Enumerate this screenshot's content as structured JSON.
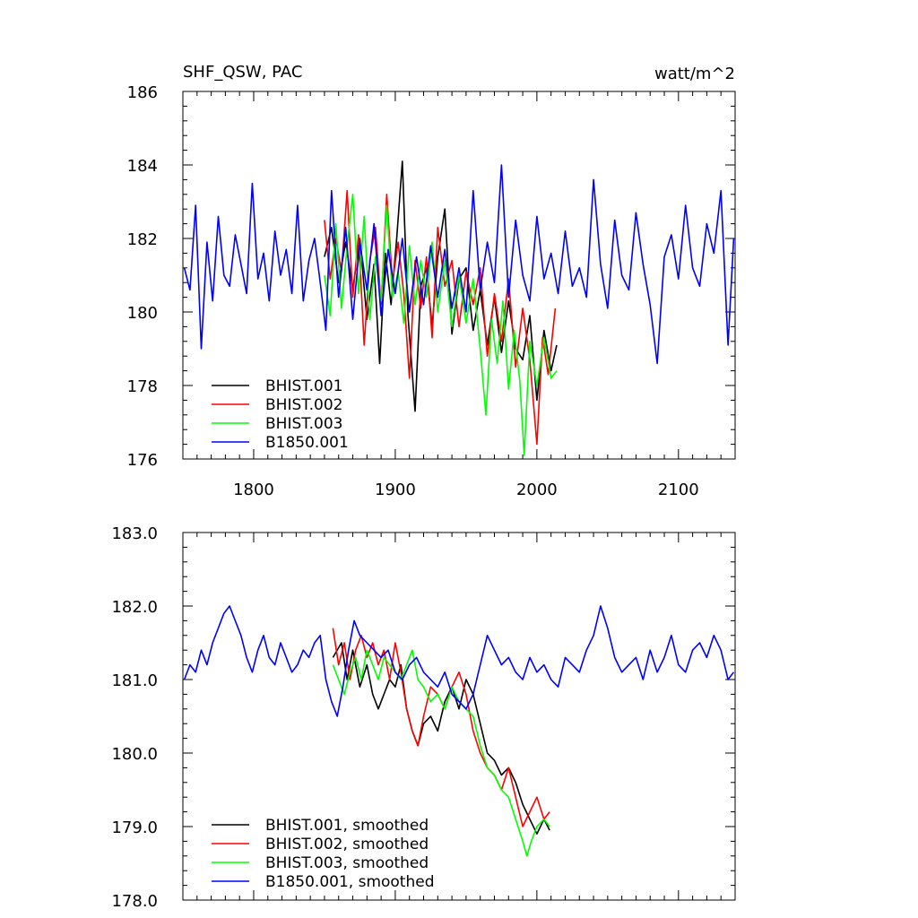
{
  "chart_data": [
    {
      "type": "line",
      "title": "SHF_QSW, PAC",
      "units": "watt/m^2",
      "xlim": [
        1750,
        2140
      ],
      "ylim": [
        176,
        186
      ],
      "x_ticks": [
        1800,
        1900,
        2000,
        2100
      ],
      "x_tick_labels": [
        "1800",
        "1900",
        "2000",
        "2100"
      ],
      "y_ticks": [
        176,
        178,
        180,
        182,
        184,
        186
      ],
      "y_tick_labels": [
        "176",
        "178",
        "180",
        "182",
        "184",
        "186"
      ],
      "legend_position": "bottom-left",
      "series": [
        {
          "name": "BHIST.001",
          "color": "#000000",
          "x": [
            1850,
            1855,
            1860,
            1865,
            1870,
            1875,
            1880,
            1885,
            1889,
            1893,
            1897,
            1901,
            1905,
            1909,
            1914,
            1918,
            1922,
            1926,
            1930,
            1935,
            1940,
            1945,
            1950,
            1955,
            1960,
            1965,
            1970,
            1975,
            1980,
            1985,
            1990,
            1995,
            2000,
            2005,
            2010,
            2014
          ],
          "values": [
            181.5,
            182.3,
            180.8,
            181.9,
            180.6,
            182.0,
            179.8,
            181.3,
            178.6,
            181.6,
            180.2,
            182.0,
            184.1,
            179.9,
            177.3,
            180.7,
            181.2,
            179.6,
            181.5,
            182.8,
            179.4,
            180.9,
            181.2,
            179.5,
            180.6,
            179.1,
            180.4,
            178.9,
            180.3,
            179.0,
            178.7,
            179.9,
            177.6,
            179.5,
            178.4,
            179.1
          ]
        },
        {
          "name": "BHIST.002",
          "color": "#ff0000",
          "x": [
            1850,
            1854,
            1858,
            1862,
            1866,
            1870,
            1874,
            1878,
            1882,
            1886,
            1890,
            1894,
            1898,
            1902,
            1906,
            1910,
            1914,
            1918,
            1922,
            1926,
            1930,
            1935,
            1940,
            1945,
            1950,
            1955,
            1960,
            1965,
            1970,
            1975,
            1980,
            1985,
            1990,
            1995,
            2000,
            2004,
            2008,
            2013
          ],
          "values": [
            182.5,
            180.9,
            182.0,
            181.1,
            183.3,
            180.4,
            182.1,
            179.1,
            181.4,
            182.3,
            180.2,
            183.2,
            180.8,
            181.9,
            180.5,
            178.2,
            181.4,
            180.1,
            181.5,
            179.3,
            182.3,
            180.7,
            181.4,
            179.6,
            181.1,
            180.2,
            181.2,
            178.8,
            180.5,
            179.2,
            180.9,
            178.5,
            180.1,
            178.7,
            176.4,
            179.3,
            178.3,
            180.1
          ]
        },
        {
          "name": "BHIST.003",
          "color": "#00ff00",
          "x": [
            1850,
            1854,
            1858,
            1862,
            1866,
            1870,
            1874,
            1878,
            1882,
            1886,
            1890,
            1894,
            1898,
            1902,
            1906,
            1910,
            1914,
            1918,
            1922,
            1926,
            1930,
            1935,
            1940,
            1945,
            1950,
            1955,
            1960,
            1964,
            1968,
            1972,
            1976,
            1980,
            1984,
            1988,
            1991,
            1995,
            2000,
            2005,
            2010,
            2014
          ],
          "values": [
            181.0,
            179.9,
            182.4,
            180.1,
            181.8,
            183.2,
            180.5,
            182.6,
            179.8,
            181.5,
            180.3,
            182.9,
            180.4,
            181.1,
            179.7,
            181.8,
            180.2,
            181.4,
            180.4,
            181.9,
            180.0,
            181.4,
            179.6,
            181.0,
            179.7,
            180.9,
            179.0,
            177.2,
            179.8,
            178.6,
            180.3,
            177.9,
            179.5,
            178.1,
            176.1,
            179.2,
            178.0,
            179.3,
            178.2,
            178.4
          ]
        },
        {
          "name": "B1850.001",
          "color": "#0000ff",
          "x": [
            1751,
            1755,
            1759,
            1763,
            1767,
            1771,
            1775,
            1779,
            1783,
            1787,
            1791,
            1795,
            1799,
            1803,
            1807,
            1811,
            1815,
            1819,
            1823,
            1827,
            1831,
            1835,
            1839,
            1843,
            1847,
            1851,
            1855,
            1860,
            1865,
            1870,
            1875,
            1880,
            1885,
            1890,
            1895,
            1900,
            1905,
            1910,
            1915,
            1920,
            1925,
            1930,
            1935,
            1940,
            1945,
            1950,
            1955,
            1960,
            1965,
            1970,
            1975,
            1980,
            1985,
            1990,
            1995,
            2000,
            2005,
            2010,
            2015,
            2020,
            2025,
            2030,
            2035,
            2040,
            2045,
            2050,
            2055,
            2060,
            2065,
            2070,
            2075,
            2080,
            2085,
            2090,
            2095,
            2100,
            2105,
            2110,
            2115,
            2120,
            2125,
            2130,
            2135,
            2139
          ],
          "values": [
            181.2,
            180.6,
            182.9,
            179.0,
            181.9,
            180.3,
            182.6,
            181.0,
            180.7,
            182.1,
            181.3,
            180.5,
            183.5,
            180.9,
            181.6,
            180.3,
            182.2,
            181.0,
            181.7,
            180.5,
            182.9,
            180.3,
            181.4,
            182.0,
            180.8,
            179.5,
            183.3,
            180.4,
            182.3,
            179.8,
            181.9,
            180.6,
            182.4,
            179.9,
            181.7,
            180.5,
            182.0,
            180.0,
            181.5,
            180.2,
            181.8,
            180.4,
            181.7,
            180.1,
            181.2,
            180.0,
            183.3,
            180.6,
            181.9,
            180.8,
            184.0,
            180.4,
            182.5,
            181.0,
            180.3,
            182.6,
            180.9,
            181.6,
            180.5,
            182.2,
            180.7,
            181.2,
            180.4,
            183.6,
            181.3,
            180.1,
            182.5,
            181.0,
            180.6,
            182.7,
            181.3,
            180.2,
            178.6,
            181.5,
            182.1,
            180.9,
            182.9,
            181.2,
            180.7,
            182.4,
            181.6,
            183.3,
            179.1,
            182.0
          ]
        }
      ]
    },
    {
      "type": "line",
      "xlim": [
        1750,
        2140
      ],
      "ylim": [
        178.0,
        183.0
      ],
      "x_ticks": [
        1800,
        1900,
        2000,
        2100
      ],
      "y_ticks": [
        178.0,
        179.0,
        180.0,
        181.0,
        182.0,
        183.0
      ],
      "y_tick_labels": [
        "178.0",
        "179.0",
        "180.0",
        "181.0",
        "182.0",
        "183.0"
      ],
      "legend_position": "bottom-left",
      "series": [
        {
          "name": "BHIST.001, smoothed",
          "color": "#000000",
          "x": [
            1856,
            1862,
            1866,
            1870,
            1875,
            1880,
            1884,
            1888,
            1892,
            1896,
            1900,
            1904,
            1908,
            1912,
            1916,
            1920,
            1925,
            1930,
            1935,
            1940,
            1945,
            1950,
            1955,
            1960,
            1965,
            1970,
            1975,
            1980,
            1985,
            1990,
            1995,
            2000,
            2005,
            2009
          ],
          "values": [
            181.3,
            181.5,
            181.0,
            181.4,
            180.9,
            181.2,
            180.8,
            180.6,
            180.8,
            181.0,
            180.9,
            181.2,
            180.6,
            180.3,
            180.1,
            180.4,
            180.5,
            180.3,
            180.7,
            180.9,
            180.6,
            181.0,
            180.8,
            180.4,
            180.0,
            179.9,
            179.7,
            179.8,
            179.6,
            179.3,
            179.1,
            178.9,
            179.1,
            178.95
          ]
        },
        {
          "name": "BHIST.002, smoothed",
          "color": "#ff0000",
          "x": [
            1856,
            1860,
            1864,
            1868,
            1872,
            1876,
            1880,
            1884,
            1888,
            1892,
            1896,
            1900,
            1904,
            1908,
            1912,
            1916,
            1920,
            1925,
            1930,
            1935,
            1940,
            1945,
            1950,
            1955,
            1960,
            1965,
            1970,
            1975,
            1980,
            1985,
            1990,
            1995,
            2000,
            2005,
            2009
          ],
          "values": [
            181.7,
            181.2,
            181.5,
            181.0,
            181.4,
            181.6,
            181.3,
            181.5,
            181.2,
            181.4,
            181.0,
            181.5,
            181.1,
            180.6,
            180.3,
            180.1,
            180.5,
            180.9,
            180.8,
            180.6,
            180.9,
            181.1,
            180.8,
            180.3,
            180.0,
            179.8,
            179.7,
            179.5,
            179.8,
            179.4,
            179.0,
            179.2,
            179.4,
            179.1,
            179.2
          ]
        },
        {
          "name": "BHIST.003, smoothed",
          "color": "#00ff00",
          "x": [
            1856,
            1860,
            1864,
            1868,
            1872,
            1876,
            1880,
            1884,
            1888,
            1892,
            1896,
            1900,
            1904,
            1908,
            1912,
            1916,
            1920,
            1925,
            1930,
            1935,
            1940,
            1945,
            1950,
            1955,
            1960,
            1965,
            1970,
            1975,
            1980,
            1985,
            1990,
            1993,
            1996,
            2000,
            2005,
            2009
          ],
          "values": [
            181.2,
            181.0,
            180.8,
            181.1,
            181.3,
            181.0,
            181.4,
            181.2,
            181.0,
            181.3,
            181.2,
            181.1,
            181.0,
            181.2,
            181.4,
            181.0,
            180.9,
            180.7,
            180.8,
            180.6,
            180.9,
            180.7,
            180.6,
            180.5,
            180.1,
            179.8,
            179.7,
            179.5,
            179.4,
            179.1,
            178.8,
            178.6,
            178.8,
            179.0,
            179.1,
            179.0
          ]
        },
        {
          "name": "B1850.001, smoothed",
          "color": "#0000ff",
          "x": [
            1751,
            1755,
            1759,
            1763,
            1767,
            1771,
            1775,
            1779,
            1783,
            1787,
            1791,
            1795,
            1799,
            1803,
            1807,
            1811,
            1815,
            1819,
            1823,
            1827,
            1831,
            1835,
            1839,
            1843,
            1847,
            1851,
            1855,
            1859,
            1863,
            1867,
            1871,
            1875,
            1880,
            1885,
            1890,
            1895,
            1900,
            1905,
            1910,
            1915,
            1920,
            1925,
            1930,
            1935,
            1940,
            1945,
            1950,
            1955,
            1960,
            1965,
            1970,
            1975,
            1980,
            1985,
            1990,
            1995,
            2000,
            2005,
            2010,
            2015,
            2020,
            2025,
            2030,
            2035,
            2040,
            2045,
            2050,
            2055,
            2060,
            2065,
            2070,
            2075,
            2080,
            2085,
            2090,
            2095,
            2100,
            2105,
            2110,
            2115,
            2120,
            2125,
            2130,
            2135,
            2139
          ],
          "values": [
            181.0,
            181.2,
            181.1,
            181.4,
            181.2,
            181.5,
            181.7,
            181.9,
            182.0,
            181.8,
            181.6,
            181.3,
            181.1,
            181.4,
            181.6,
            181.3,
            181.2,
            181.5,
            181.3,
            181.1,
            181.2,
            181.4,
            181.3,
            181.5,
            181.6,
            181.0,
            180.7,
            180.5,
            180.9,
            181.4,
            181.8,
            181.6,
            181.5,
            181.4,
            181.3,
            181.4,
            181.1,
            181.0,
            181.2,
            181.3,
            181.1,
            181.0,
            180.9,
            181.1,
            180.8,
            180.7,
            180.6,
            180.8,
            181.2,
            181.6,
            181.4,
            181.2,
            181.3,
            181.1,
            181.0,
            181.3,
            181.1,
            181.2,
            181.0,
            180.9,
            181.3,
            181.2,
            181.1,
            181.4,
            181.6,
            182.0,
            181.7,
            181.3,
            181.1,
            181.2,
            181.3,
            181.0,
            181.4,
            181.1,
            181.3,
            181.6,
            181.2,
            181.1,
            181.4,
            181.5,
            181.3,
            181.6,
            181.4,
            181.0,
            181.1
          ]
        }
      ]
    }
  ]
}
